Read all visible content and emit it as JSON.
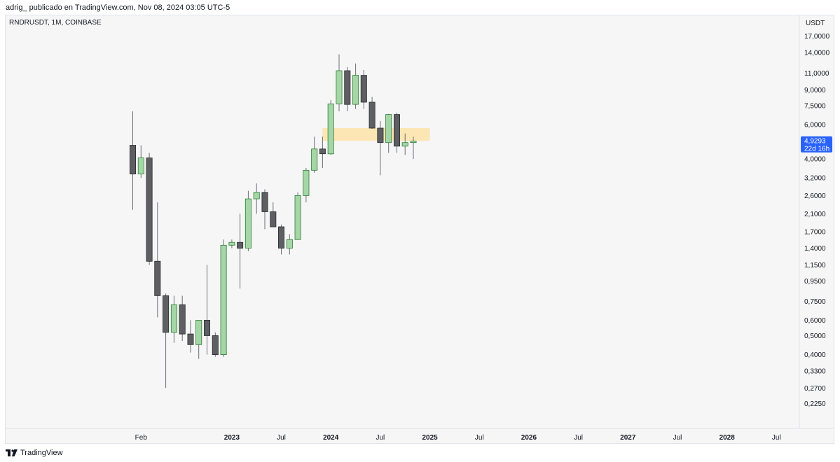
{
  "header": {
    "byline": "adrig_ publicado en TradingView.com, Nov 08, 2024 03:05 UTC-5"
  },
  "symbol": {
    "title": "RNDRUSDT, 1M, COINBASE"
  },
  "footer": {
    "brand": "TradingView"
  },
  "colors": {
    "up_body": "#a5d6a7",
    "up_border": "#2e7d32",
    "down_body": "#5d5f63",
    "down_border": "#2a2b2e",
    "wick": "#6b6e75",
    "zone": "#fde3a7",
    "price_label": "#2962ff",
    "background": "#f6f6f6"
  },
  "chart_data": {
    "type": "candlestick",
    "price_axis": {
      "unit": "USDT",
      "scale": "log",
      "ticks": [
        {
          "value": 17,
          "label": "17,0000"
        },
        {
          "value": 14,
          "label": "14,0000"
        },
        {
          "value": 11,
          "label": "11,0000"
        },
        {
          "value": 9,
          "label": "9,0000"
        },
        {
          "value": 7.5,
          "label": "7,5000"
        },
        {
          "value": 6,
          "label": "6,0000"
        },
        {
          "value": 4,
          "label": "4,0000"
        },
        {
          "value": 3.2,
          "label": "3,2000"
        },
        {
          "value": 2.6,
          "label": "2,6000"
        },
        {
          "value": 2.1,
          "label": "2,1000"
        },
        {
          "value": 1.7,
          "label": "1,7000"
        },
        {
          "value": 1.4,
          "label": "1,4000"
        },
        {
          "value": 1.15,
          "label": "1,1500"
        },
        {
          "value": 0.95,
          "label": "0,9500"
        },
        {
          "value": 0.75,
          "label": "0,7500"
        },
        {
          "value": 0.6,
          "label": "0,6000"
        },
        {
          "value": 0.5,
          "label": "0,5000"
        },
        {
          "value": 0.4,
          "label": "0,4000"
        },
        {
          "value": 0.33,
          "label": "0,3300"
        },
        {
          "value": 0.27,
          "label": "0,2700"
        },
        {
          "value": 0.225,
          "label": "0,2250"
        }
      ]
    },
    "time_axis": {
      "labels": [
        {
          "month_index": 1,
          "label": "Feb",
          "bold": false
        },
        {
          "month_index": 12,
          "label": "2023",
          "bold": true
        },
        {
          "month_index": 18,
          "label": "Jul",
          "bold": false
        },
        {
          "month_index": 24,
          "label": "2024",
          "bold": true
        },
        {
          "month_index": 30,
          "label": "Jul",
          "bold": false
        },
        {
          "month_index": 36,
          "label": "2025",
          "bold": true
        },
        {
          "month_index": 42,
          "label": "Jul",
          "bold": false
        },
        {
          "month_index": 48,
          "label": "2026",
          "bold": true
        },
        {
          "month_index": 54,
          "label": "Jul",
          "bold": false
        },
        {
          "month_index": 60,
          "label": "2027",
          "bold": true
        },
        {
          "month_index": 66,
          "label": "Jul",
          "bold": false
        },
        {
          "month_index": 72,
          "label": "2028",
          "bold": true
        },
        {
          "month_index": 78,
          "label": "Jul",
          "bold": false
        }
      ]
    },
    "candles": [
      {
        "month": "2022-01",
        "open": 4.7,
        "high": 7.0,
        "low": 2.2,
        "close": 3.35
      },
      {
        "month": "2022-02",
        "open": 3.35,
        "high": 4.7,
        "low": 3.2,
        "close": 4.05
      },
      {
        "month": "2022-03",
        "open": 4.05,
        "high": 4.3,
        "low": 1.15,
        "close": 1.2
      },
      {
        "month": "2022-04",
        "open": 1.2,
        "high": 2.4,
        "low": 0.62,
        "close": 0.8
      },
      {
        "month": "2022-05",
        "open": 0.8,
        "high": 0.82,
        "low": 0.27,
        "close": 0.52
      },
      {
        "month": "2022-06",
        "open": 0.52,
        "high": 0.8,
        "low": 0.46,
        "close": 0.72
      },
      {
        "month": "2022-07",
        "open": 0.72,
        "high": 0.8,
        "low": 0.47,
        "close": 0.51
      },
      {
        "month": "2022-08",
        "open": 0.51,
        "high": 0.6,
        "low": 0.41,
        "close": 0.45
      },
      {
        "month": "2022-09",
        "open": 0.45,
        "high": 0.59,
        "low": 0.38,
        "close": 0.6
      },
      {
        "month": "2022-10",
        "open": 0.6,
        "high": 1.15,
        "low": 0.4,
        "close": 0.5
      },
      {
        "month": "2022-11",
        "open": 0.5,
        "high": 0.52,
        "low": 0.39,
        "close": 0.4
      },
      {
        "month": "2022-12",
        "open": 0.4,
        "high": 1.55,
        "low": 0.39,
        "close": 1.45
      },
      {
        "month": "2023-01",
        "open": 1.45,
        "high": 1.55,
        "low": 1.4,
        "close": 1.5
      },
      {
        "month": "2023-02",
        "open": 1.5,
        "high": 2.1,
        "low": 0.87,
        "close": 1.4
      },
      {
        "month": "2023-03",
        "open": 1.4,
        "high": 2.75,
        "low": 1.35,
        "close": 2.5
      },
      {
        "month": "2023-04",
        "open": 2.5,
        "high": 3.0,
        "low": 2.1,
        "close": 2.7
      },
      {
        "month": "2023-05",
        "open": 2.7,
        "high": 2.8,
        "low": 1.75,
        "close": 2.15
      },
      {
        "month": "2023-06",
        "open": 2.15,
        "high": 2.4,
        "low": 1.8,
        "close": 1.8
      },
      {
        "month": "2023-07",
        "open": 1.8,
        "high": 1.85,
        "low": 1.3,
        "close": 1.4
      },
      {
        "month": "2023-08",
        "open": 1.4,
        "high": 1.65,
        "low": 1.3,
        "close": 1.55
      },
      {
        "month": "2023-09",
        "open": 1.55,
        "high": 2.7,
        "low": 1.55,
        "close": 2.6
      },
      {
        "month": "2023-10",
        "open": 2.6,
        "high": 3.6,
        "low": 2.4,
        "close": 3.5
      },
      {
        "month": "2023-11",
        "open": 3.5,
        "high": 5.2,
        "low": 3.4,
        "close": 4.5
      },
      {
        "month": "2023-12",
        "open": 4.5,
        "high": 5.2,
        "low": 3.6,
        "close": 4.25
      },
      {
        "month": "2024-01",
        "open": 4.25,
        "high": 8.0,
        "low": 4.2,
        "close": 7.65
      },
      {
        "month": "2024-02",
        "open": 7.65,
        "high": 13.7,
        "low": 7.0,
        "close": 11.3
      },
      {
        "month": "2024-03",
        "open": 11.3,
        "high": 11.8,
        "low": 7.0,
        "close": 7.6
      },
      {
        "month": "2024-04",
        "open": 7.6,
        "high": 12.3,
        "low": 7.2,
        "close": 10.7
      },
      {
        "month": "2024-05",
        "open": 10.7,
        "high": 11.4,
        "low": 7.2,
        "close": 7.8
      },
      {
        "month": "2024-06",
        "open": 7.8,
        "high": 8.3,
        "low": 5.7,
        "close": 5.75
      },
      {
        "month": "2024-07",
        "open": 5.75,
        "high": 6.25,
        "low": 3.3,
        "close": 4.85
      },
      {
        "month": "2024-08",
        "open": 4.85,
        "high": 6.8,
        "low": 4.3,
        "close": 6.75
      },
      {
        "month": "2024-09",
        "open": 6.75,
        "high": 6.9,
        "low": 4.3,
        "close": 4.65
      },
      {
        "month": "2024-10",
        "open": 4.65,
        "high": 5.4,
        "low": 4.2,
        "close": 4.85
      },
      {
        "month": "2024-11",
        "open": 4.85,
        "high": 5.2,
        "low": 4.0,
        "close": 4.93
      }
    ],
    "zone": {
      "month_start": 23,
      "month_end": 36,
      "price_low": 4.95,
      "price_high": 5.75
    },
    "last_price": {
      "value": 4.9293,
      "label": "4,9293",
      "countdown": "22d 16h"
    }
  }
}
